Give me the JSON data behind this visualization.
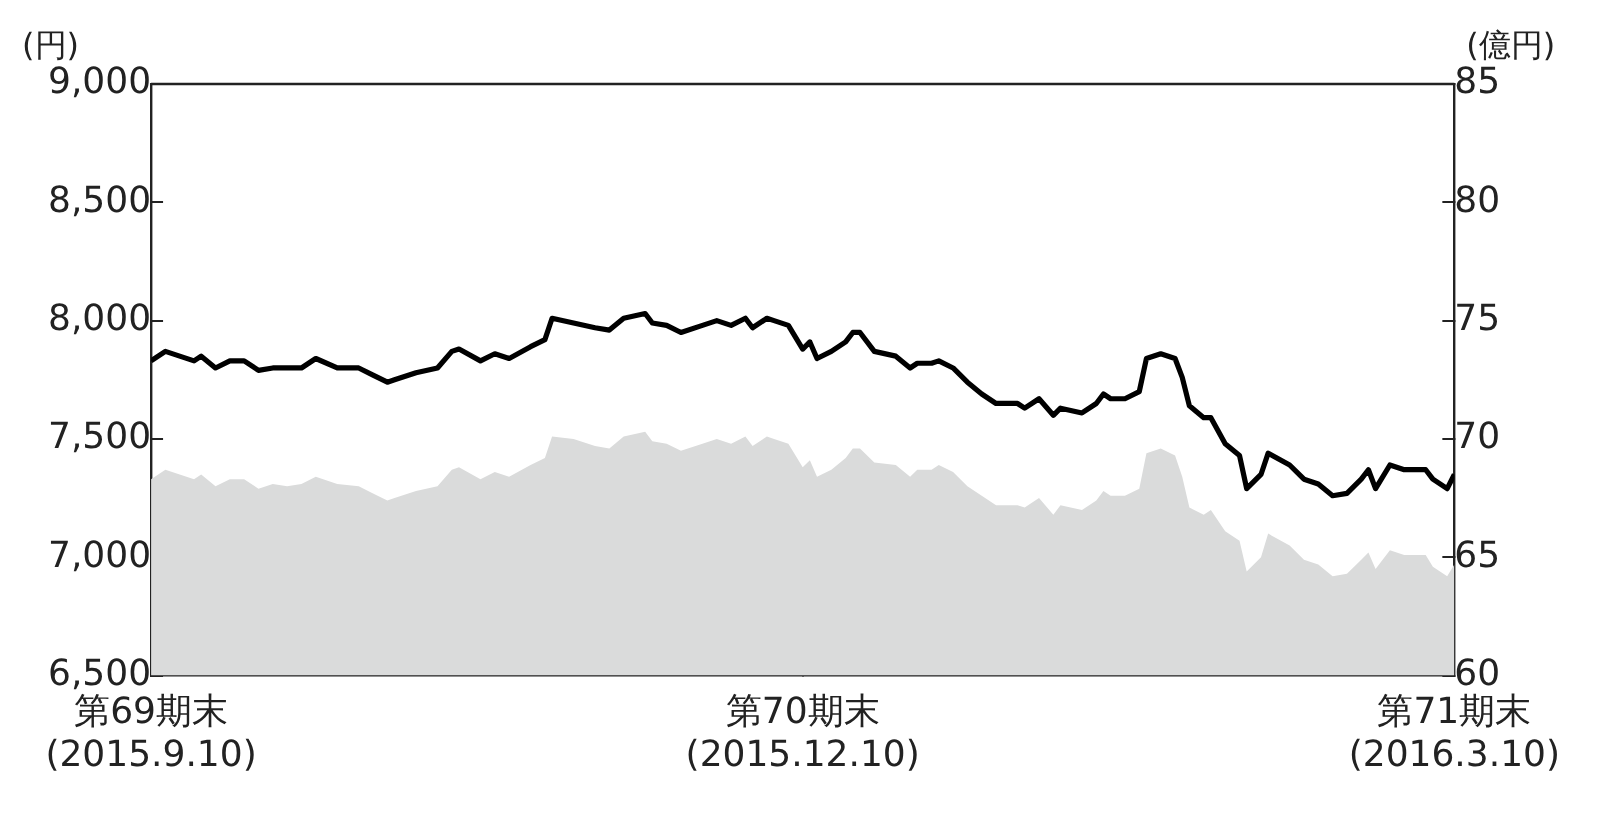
{
  "chart_data": {
    "type": "line",
    "ylabel": "(円)",
    "y2label": "(億円)",
    "x": [
      "2015-09-10",
      "2015-09-12",
      "2015-09-14",
      "2015-09-16",
      "2015-09-17",
      "2015-09-19",
      "2015-09-21",
      "2015-09-23",
      "2015-09-25",
      "2015-09-27",
      "2015-09-29",
      "2015-10-01",
      "2015-10-03",
      "2015-10-06",
      "2015-10-09",
      "2015-10-11",
      "2015-10-13",
      "2015-10-14",
      "2015-10-17",
      "2015-10-20",
      "2015-10-22",
      "2015-10-23",
      "2015-10-26",
      "2015-10-28",
      "2015-10-30",
      "2015-11-02",
      "2015-11-04",
      "2015-11-05",
      "2015-11-08",
      "2015-11-11",
      "2015-11-13",
      "2015-11-15",
      "2015-11-18",
      "2015-11-19",
      "2015-11-21",
      "2015-11-23",
      "2015-11-26",
      "2015-11-28",
      "2015-11-30",
      "2015-12-02",
      "2015-12-03",
      "2015-12-05",
      "2015-12-06",
      "2015-12-08",
      "2015-12-10",
      "2015-12-11",
      "2015-12-12",
      "2015-12-14",
      "2015-12-16",
      "2015-12-17",
      "2015-12-18",
      "2015-12-20",
      "2015-12-23",
      "2015-12-25",
      "2015-12-26",
      "2015-12-28",
      "2015-12-29",
      "2015-12-31",
      "2016-01-02",
      "2016-01-04",
      "2016-01-06",
      "2016-01-09",
      "2016-01-10",
      "2016-01-12",
      "2016-01-14",
      "2016-01-15",
      "2016-01-18",
      "2016-01-20",
      "2016-01-21",
      "2016-01-22",
      "2016-01-24",
      "2016-01-26",
      "2016-01-27",
      "2016-01-29",
      "2016-01-31",
      "2016-02-01",
      "2016-02-02",
      "2016-02-04",
      "2016-02-05",
      "2016-02-07",
      "2016-02-09",
      "2016-02-10",
      "2016-02-12",
      "2016-02-13",
      "2016-02-16",
      "2016-02-18",
      "2016-02-20",
      "2016-02-22",
      "2016-02-24",
      "2016-02-26",
      "2016-02-27",
      "2016-02-28",
      "2016-03-01",
      "2016-03-03",
      "2016-03-06",
      "2016-03-07",
      "2016-03-09",
      "2016-03-10"
    ],
    "series": [
      {
        "type": "area",
        "axis": "y2",
        "color": "#dadbdb",
        "values": [
          68.3,
          68.7,
          68.5,
          68.3,
          68.5,
          68.0,
          68.3,
          68.3,
          67.9,
          68.1,
          68.0,
          68.1,
          68.4,
          68.1,
          68.0,
          67.7,
          67.4,
          67.5,
          67.8,
          68.0,
          68.7,
          68.8,
          68.3,
          68.6,
          68.4,
          68.9,
          69.2,
          70.1,
          70.0,
          69.7,
          69.6,
          70.1,
          70.3,
          69.9,
          69.8,
          69.5,
          69.8,
          70.0,
          69.8,
          70.1,
          69.7,
          70.1,
          70.0,
          69.8,
          68.8,
          69.1,
          68.4,
          68.7,
          69.2,
          69.6,
          69.6,
          69.0,
          68.9,
          68.4,
          68.7,
          68.7,
          68.9,
          68.6,
          68.0,
          67.6,
          67.2,
          67.2,
          67.1,
          67.5,
          66.8,
          67.2,
          67.0,
          67.4,
          67.8,
          67.6,
          67.6,
          67.9,
          69.4,
          69.6,
          69.3,
          68.4,
          67.1,
          66.8,
          67.0,
          66.1,
          65.7,
          64.4,
          65.0,
          66.0,
          65.5,
          64.9,
          64.7,
          64.2,
          64.3,
          64.9,
          65.2,
          64.5,
          65.3,
          65.1,
          65.1,
          64.6,
          64.2,
          64.7
        ]
      },
      {
        "type": "line",
        "color": "#000000",
        "values": [
          7830,
          7870,
          7850,
          7830,
          7850,
          7800,
          7830,
          7830,
          7790,
          7800,
          7800,
          7800,
          7840,
          7800,
          7800,
          7770,
          7740,
          7750,
          7780,
          7800,
          7870,
          7880,
          7830,
          7860,
          7840,
          7890,
          7920,
          8010,
          7990,
          7970,
          7960,
          8010,
          8030,
          7990,
          7980,
          7950,
          7980,
          8000,
          7980,
          8010,
          7970,
          8010,
          8000,
          7980,
          7880,
          7910,
          7840,
          7870,
          7910,
          7950,
          7950,
          7870,
          7850,
          7800,
          7820,
          7820,
          7830,
          7800,
          7740,
          7690,
          7650,
          7650,
          7630,
          7670,
          7600,
          7630,
          7610,
          7650,
          7690,
          7670,
          7670,
          7700,
          7840,
          7860,
          7840,
          7760,
          7640,
          7590,
          7590,
          7480,
          7430,
          7290,
          7350,
          7440,
          7390,
          7330,
          7310,
          7260,
          7270,
          7330,
          7370,
          7290,
          7390,
          7370,
          7370,
          7330,
          7290,
          7350
        ]
      }
    ],
    "xlim": [
      "2015-09-10",
      "2016-03-10"
    ],
    "xticks": [
      {
        "value": "2015-09-10",
        "label": "第69期末\n(2015.9.10)"
      },
      {
        "value": "2015-12-10",
        "label": "第70期末\n(2015.12.10)"
      },
      {
        "value": "2016-03-10",
        "label": "第71期末\n(2016.3.10)"
      }
    ],
    "ylim": [
      6500,
      9000
    ],
    "yticks": [
      {
        "value": 6500,
        "label": "6,500"
      },
      {
        "value": 7000,
        "label": "7,000"
      },
      {
        "value": 7500,
        "label": "7,500"
      },
      {
        "value": 8000,
        "label": "8,000"
      },
      {
        "value": 8500,
        "label": "8,500"
      },
      {
        "value": 9000,
        "label": "9,000"
      }
    ],
    "y2lim": [
      60,
      85
    ],
    "y2ticks": [
      60,
      65,
      70,
      75,
      80,
      85
    ],
    "grid": false,
    "legend": false,
    "marker": "none",
    "line_style": "solid"
  }
}
